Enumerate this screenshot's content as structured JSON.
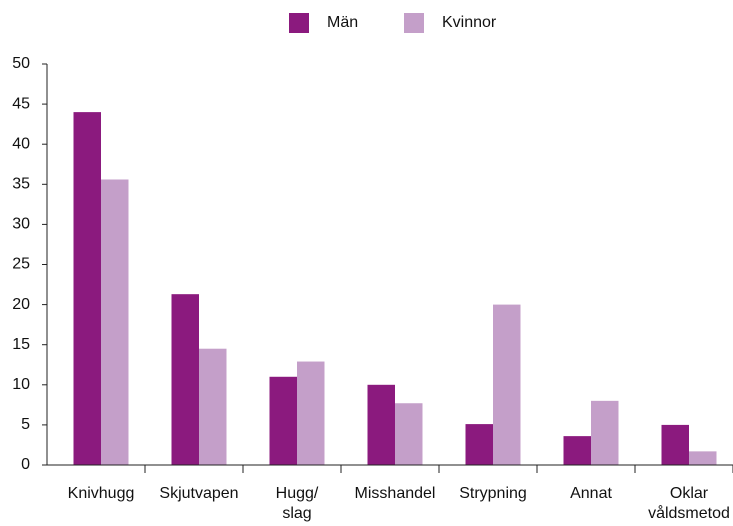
{
  "chart_data": {
    "type": "bar",
    "categories": [
      "Knivhugg",
      "Skjutvapen",
      "Hugg/\nslag",
      "Misshandel",
      "Strypning",
      "Annat",
      "Oklar\nvåldsmetod"
    ],
    "series": [
      {
        "name": "Män",
        "color": "#8b1a7e",
        "values": [
          44,
          21.3,
          11,
          10,
          5.1,
          3.6,
          5
        ]
      },
      {
        "name": "Kvinnor",
        "color": "#c49fc9",
        "values": [
          35.6,
          14.5,
          12.9,
          7.7,
          20,
          8,
          1.7
        ]
      }
    ],
    "ylim": [
      0,
      50
    ],
    "yticks": [
      0,
      5,
      10,
      15,
      20,
      25,
      30,
      35,
      40,
      45,
      50
    ],
    "grid": false,
    "legend": "top"
  }
}
